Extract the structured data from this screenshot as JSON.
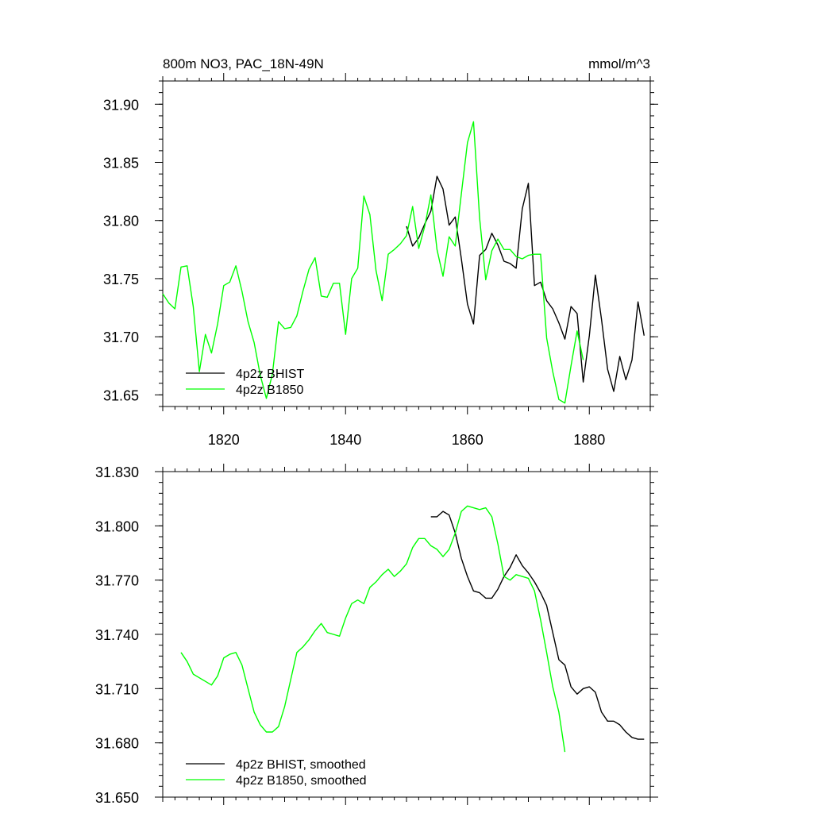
{
  "chart_data": [
    {
      "type": "line",
      "title_left": "800m NO3, PAC_18N-49N",
      "title_right": "mmol/m^3",
      "xlim": [
        1810,
        1890
      ],
      "ylim": [
        31.64,
        31.92
      ],
      "x_ticks": [
        1820,
        1840,
        1860,
        1880
      ],
      "x_tick_labels": [
        "1820",
        "1840",
        "1860",
        "1880"
      ],
      "y_ticks": [
        31.65,
        31.7,
        31.75,
        31.8,
        31.85,
        31.9
      ],
      "y_tick_labels": [
        "31.65",
        "31.70",
        "31.75",
        "31.80",
        "31.85",
        "31.90"
      ],
      "legend_position": "bottom-left",
      "series": [
        {
          "name": "4p2z BHIST",
          "color": "#000000",
          "x": [
            1850,
            1851,
            1852,
            1853,
            1854,
            1855,
            1856,
            1857,
            1858,
            1859,
            1860,
            1861,
            1862,
            1863,
            1864,
            1865,
            1866,
            1867,
            1868,
            1869,
            1870,
            1871,
            1872,
            1873,
            1874,
            1875,
            1876,
            1877,
            1878,
            1879,
            1880,
            1881,
            1882,
            1883,
            1884,
            1885,
            1886,
            1887,
            1888,
            1889
          ],
          "y": [
            31.795,
            31.778,
            31.785,
            31.797,
            31.808,
            31.838,
            31.827,
            31.796,
            31.803,
            31.767,
            31.728,
            31.711,
            31.77,
            31.775,
            31.789,
            31.779,
            31.765,
            31.763,
            31.759,
            31.81,
            31.832,
            31.744,
            31.747,
            31.731,
            31.724,
            31.712,
            31.698,
            31.726,
            31.72,
            31.661,
            31.701,
            31.753,
            31.715,
            31.672,
            31.653,
            31.683,
            31.663,
            31.68,
            31.73,
            31.701
          ]
        },
        {
          "name": "4p2z B1850",
          "color": "#00ff00",
          "x": [
            1810,
            1811,
            1812,
            1813,
            1814,
            1815,
            1816,
            1817,
            1818,
            1819,
            1820,
            1821,
            1822,
            1823,
            1824,
            1825,
            1826,
            1827,
            1828,
            1829,
            1830,
            1831,
            1832,
            1833,
            1834,
            1835,
            1836,
            1837,
            1838,
            1839,
            1840,
            1841,
            1842,
            1843,
            1844,
            1845,
            1846,
            1847,
            1848,
            1849,
            1850,
            1851,
            1852,
            1853,
            1854,
            1855,
            1856,
            1857,
            1858,
            1859,
            1860,
            1861,
            1862,
            1863,
            1864,
            1865,
            1866,
            1867,
            1868,
            1869,
            1870,
            1871,
            1872,
            1873,
            1874,
            1875,
            1876,
            1877,
            1878,
            1879
          ],
          "y": [
            31.737,
            31.729,
            31.724,
            31.76,
            31.761,
            31.726,
            31.67,
            31.702,
            31.686,
            31.711,
            31.744,
            31.747,
            31.761,
            31.739,
            31.713,
            31.695,
            31.667,
            31.647,
            31.668,
            31.713,
            31.707,
            31.708,
            31.718,
            31.739,
            31.758,
            31.768,
            31.735,
            31.734,
            31.746,
            31.746,
            31.702,
            31.75,
            31.759,
            31.821,
            31.805,
            31.757,
            31.731,
            31.771,
            31.775,
            31.78,
            31.787,
            31.812,
            31.776,
            31.795,
            31.822,
            31.775,
            31.752,
            31.786,
            31.778,
            31.823,
            31.867,
            31.885,
            31.802,
            31.749,
            31.774,
            31.784,
            31.775,
            31.775,
            31.769,
            31.767,
            31.77,
            31.771,
            31.771,
            31.699,
            31.67,
            31.646,
            31.643,
            31.675,
            31.705,
            31.68
          ]
        }
      ]
    },
    {
      "type": "line",
      "xlim": [
        1810,
        1890
      ],
      "ylim": [
        31.65,
        31.83
      ],
      "y_ticks": [
        31.65,
        31.68,
        31.71,
        31.74,
        31.77,
        31.8,
        31.83
      ],
      "y_tick_labels": [
        "31.650",
        "31.680",
        "31.710",
        "31.740",
        "31.770",
        "31.800",
        "31.830"
      ],
      "x_ticks": [
        1820,
        1840,
        1860,
        1880
      ],
      "legend_position": "bottom-left",
      "series": [
        {
          "name": "4p2z BHIST, smoothed",
          "color": "#000000",
          "x": [
            1854,
            1855,
            1856,
            1857,
            1858,
            1859,
            1860,
            1861,
            1862,
            1863,
            1864,
            1865,
            1866,
            1867,
            1868,
            1869,
            1870,
            1871,
            1872,
            1873,
            1874,
            1875,
            1876,
            1877,
            1878,
            1879,
            1880,
            1881,
            1882,
            1883,
            1884,
            1885,
            1886,
            1887,
            1888,
            1889
          ],
          "y": [
            31.805,
            31.805,
            31.808,
            31.806,
            31.796,
            31.782,
            31.772,
            31.764,
            31.763,
            31.76,
            31.76,
            31.765,
            31.772,
            31.777,
            31.784,
            31.778,
            31.774,
            31.769,
            31.763,
            31.756,
            31.741,
            31.726,
            31.723,
            31.711,
            31.707,
            31.71,
            31.711,
            31.708,
            31.697,
            31.692,
            31.692,
            31.69,
            31.686,
            31.683,
            31.682,
            31.682
          ]
        },
        {
          "name": "4p2z B1850, smoothed",
          "color": "#00ff00",
          "x": [
            1813,
            1814,
            1815,
            1816,
            1817,
            1818,
            1819,
            1820,
            1821,
            1822,
            1823,
            1824,
            1825,
            1826,
            1827,
            1828,
            1829,
            1830,
            1831,
            1832,
            1833,
            1834,
            1835,
            1836,
            1837,
            1838,
            1839,
            1840,
            1841,
            1842,
            1843,
            1844,
            1845,
            1846,
            1847,
            1848,
            1849,
            1850,
            1851,
            1852,
            1853,
            1854,
            1855,
            1856,
            1857,
            1858,
            1859,
            1860,
            1861,
            1862,
            1863,
            1864,
            1865,
            1866,
            1867,
            1868,
            1869,
            1870,
            1871,
            1872,
            1873,
            1874,
            1875,
            1876
          ],
          "y": [
            31.73,
            31.725,
            31.718,
            31.716,
            31.714,
            31.712,
            31.717,
            31.727,
            31.729,
            31.73,
            31.723,
            31.71,
            31.697,
            31.69,
            31.686,
            31.686,
            31.689,
            31.7,
            31.715,
            31.73,
            31.733,
            31.737,
            31.742,
            31.746,
            31.741,
            31.74,
            31.739,
            31.749,
            31.757,
            31.759,
            31.757,
            31.766,
            31.769,
            31.773,
            31.776,
            31.772,
            31.775,
            31.779,
            31.788,
            31.793,
            31.793,
            31.789,
            31.787,
            31.783,
            31.787,
            31.796,
            31.808,
            31.811,
            31.81,
            31.809,
            31.81,
            31.805,
            31.79,
            31.772,
            31.77,
            31.773,
            31.772,
            31.771,
            31.764,
            31.748,
            31.73,
            31.711,
            31.697,
            31.675
          ]
        }
      ]
    }
  ]
}
